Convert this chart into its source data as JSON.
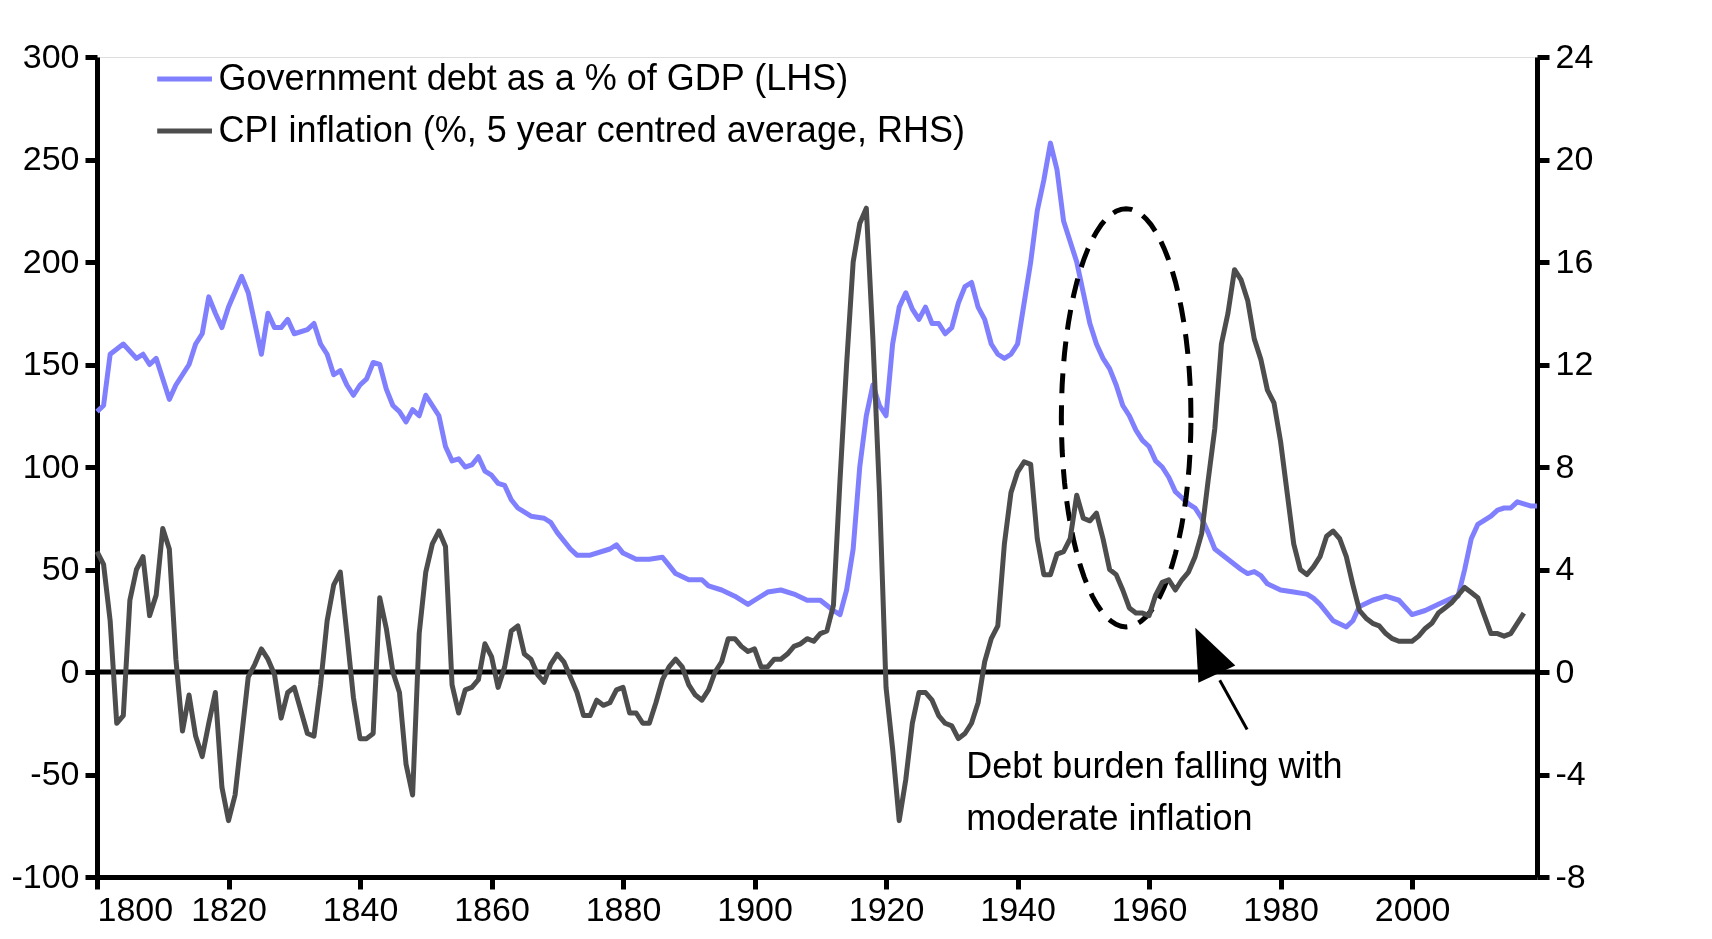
{
  "chart_data": {
    "type": "line",
    "xlim": [
      1800,
      2019
    ],
    "xticks": [
      1800,
      1820,
      1840,
      1860,
      1880,
      1900,
      1920,
      1940,
      1960,
      1980,
      2000
    ],
    "ylim": [
      -100,
      300
    ],
    "yticks": [
      -100,
      -50,
      0,
      50,
      100,
      150,
      200,
      250,
      300
    ],
    "y2lim": [
      -8,
      24
    ],
    "y2ticks": [
      -8,
      -4,
      0,
      4,
      8,
      12,
      16,
      20,
      24
    ],
    "grid": false,
    "legend": "top left",
    "marker": "none",
    "line_style": "solid",
    "ref_lines": [
      {
        "axis": "y",
        "value": 0,
        "label": null,
        "color": "#000000"
      }
    ],
    "annotations": [
      {
        "text": "Debt burden falling with moderate inflation",
        "x": 1969,
        "y": 0
      }
    ],
    "series": [
      {
        "name": "Government debt as a % of GDP (LHS)",
        "color": "#8080ff",
        "axis": "y",
        "x": [
          1800,
          1801,
          1802,
          1804,
          1806,
          1807,
          1808,
          1809,
          1811,
          1812,
          1814,
          1815,
          1816,
          1817,
          1818,
          1819,
          1820,
          1822,
          1823,
          1825,
          1826,
          1827,
          1828,
          1829,
          1830,
          1832,
          1833,
          1834,
          1835,
          1836,
          1837,
          1838,
          1839,
          1840,
          1841,
          1842,
          1843,
          1844,
          1845,
          1846,
          1847,
          1848,
          1849,
          1850,
          1851,
          1852,
          1853,
          1854,
          1855,
          1856,
          1857,
          1858,
          1859,
          1860,
          1861,
          1862,
          1863,
          1864,
          1866,
          1868,
          1869,
          1870,
          1872,
          1873,
          1875,
          1878,
          1879,
          1880,
          1882,
          1884,
          1886,
          1887,
          1888,
          1890,
          1892,
          1893,
          1895,
          1897,
          1899,
          1900,
          1902,
          1904,
          1906,
          1908,
          1910,
          1912,
          1913,
          1914,
          1915,
          1916,
          1917,
          1918,
          1919,
          1920,
          1921,
          1922,
          1923,
          1924,
          1925,
          1926,
          1927,
          1928,
          1929,
          1930,
          1931,
          1932,
          1933,
          1934,
          1935,
          1936,
          1937,
          1938,
          1939,
          1940,
          1941,
          1942,
          1943,
          1944,
          1945,
          1946,
          1947,
          1948,
          1949,
          1950,
          1951,
          1952,
          1953,
          1954,
          1955,
          1956,
          1957,
          1958,
          1959,
          1960,
          1961,
          1962,
          1963,
          1964,
          1965,
          1966,
          1967,
          1968,
          1969,
          1970,
          1972,
          1974,
          1975,
          1976,
          1977,
          1978,
          1980,
          1982,
          1984,
          1985,
          1986,
          1988,
          1990,
          1991,
          1992,
          1994,
          1996,
          1998,
          2000,
          2002,
          2004,
          2006,
          2007,
          2008,
          2009,
          2010,
          2012,
          2013,
          2014,
          2015,
          2016,
          2017,
          2018,
          2019
        ],
        "values": [
          127,
          130,
          155,
          160,
          153,
          155,
          150,
          153,
          133,
          140,
          150,
          160,
          165,
          183,
          175,
          168,
          178,
          193,
          185,
          155,
          175,
          168,
          168,
          172,
          165,
          167,
          170,
          160,
          155,
          145,
          147,
          140,
          135,
          140,
          143,
          151,
          150,
          138,
          130,
          127,
          122,
          128,
          125,
          135,
          130,
          125,
          110,
          103,
          104,
          100,
          101,
          105,
          98,
          96,
          92,
          91,
          84,
          80,
          76,
          75,
          73,
          68,
          60,
          57,
          57,
          60,
          62,
          58,
          55,
          55,
          56,
          52,
          48,
          45,
          45,
          42,
          40,
          37,
          33,
          35,
          39,
          40,
          38,
          35,
          35,
          30,
          28,
          40,
          60,
          100,
          125,
          140,
          130,
          125,
          160,
          178,
          185,
          177,
          172,
          178,
          170,
          170,
          165,
          168,
          180,
          188,
          190,
          178,
          172,
          160,
          155,
          153,
          155,
          160,
          180,
          200,
          225,
          240,
          258,
          245,
          220,
          210,
          200,
          185,
          170,
          160,
          153,
          148,
          140,
          130,
          125,
          118,
          113,
          110,
          103,
          100,
          95,
          88,
          85,
          82,
          80,
          75,
          68,
          60,
          55,
          50,
          48,
          49,
          47,
          43,
          40,
          39,
          38,
          36,
          33,
          25,
          22,
          25,
          32,
          35,
          37,
          35,
          28,
          30,
          33,
          36,
          37,
          50,
          65,
          72,
          76,
          79,
          80,
          80,
          83,
          82,
          81,
          81
        ]
      },
      {
        "name": "CPI inflation (%, 5 year centred average, RHS)",
        "color": "#4d4d4d",
        "axis": "y2",
        "x": [
          1800,
          1801,
          1802,
          1803,
          1804,
          1805,
          1806,
          1807,
          1808,
          1809,
          1810,
          1811,
          1812,
          1813,
          1814,
          1815,
          1816,
          1817,
          1818,
          1819,
          1820,
          1821,
          1822,
          1823,
          1824,
          1825,
          1826,
          1827,
          1828,
          1829,
          1830,
          1832,
          1833,
          1834,
          1835,
          1836,
          1837,
          1838,
          1839,
          1840,
          1841,
          1842,
          1843,
          1844,
          1845,
          1846,
          1847,
          1848,
          1849,
          1850,
          1851,
          1852,
          1853,
          1854,
          1855,
          1856,
          1857,
          1858,
          1859,
          1860,
          1861,
          1862,
          1863,
          1864,
          1865,
          1866,
          1867,
          1868,
          1869,
          1870,
          1871,
          1872,
          1873,
          1874,
          1875,
          1876,
          1877,
          1878,
          1879,
          1880,
          1881,
          1882,
          1883,
          1884,
          1885,
          1886,
          1887,
          1888,
          1889,
          1890,
          1891,
          1892,
          1893,
          1894,
          1895,
          1896,
          1897,
          1898,
          1899,
          1900,
          1901,
          1902,
          1903,
          1904,
          1905,
          1906,
          1907,
          1908,
          1909,
          1910,
          1911,
          1912,
          1913,
          1914,
          1915,
          1916,
          1917,
          1918,
          1919,
          1920,
          1921,
          1922,
          1923,
          1924,
          1925,
          1926,
          1927,
          1928,
          1929,
          1930,
          1931,
          1932,
          1933,
          1934,
          1935,
          1936,
          1937,
          1938,
          1939,
          1940,
          1941,
          1942,
          1943,
          1944,
          1945,
          1946,
          1947,
          1948,
          1949,
          1950,
          1951,
          1952,
          1953,
          1954,
          1955,
          1956,
          1957,
          1958,
          1959,
          1960,
          1961,
          1962,
          1963,
          1964,
          1965,
          1966,
          1967,
          1968,
          1969,
          1970,
          1971,
          1972,
          1973,
          1974,
          1975,
          1976,
          1977,
          1978,
          1979,
          1980,
          1981,
          1982,
          1983,
          1984,
          1985,
          1986,
          1987,
          1988,
          1989,
          1990,
          1991,
          1992,
          1993,
          1994,
          1995,
          1996,
          1997,
          1998,
          1999,
          2000,
          2001,
          2002,
          2003,
          2004,
          2005,
          2006,
          2007,
          2008,
          2009,
          2010,
          2011,
          2012,
          2013,
          2014,
          2015,
          2016,
          2017
        ],
        "values": [
          4.7,
          4.2,
          2,
          -2,
          -1.7,
          2.8,
          4,
          4.5,
          2.2,
          3,
          5.6,
          4.8,
          0.5,
          -2.3,
          -0.9,
          -2.5,
          -3.3,
          -2,
          -0.8,
          -4.5,
          -5.8,
          -4.8,
          -2.5,
          -0.2,
          0.3,
          0.9,
          0.5,
          -0.1,
          -1.8,
          -0.8,
          -0.6,
          -2.4,
          -2.5,
          -0.5,
          2,
          3.4,
          3.9,
          1.5,
          -1,
          -2.6,
          -2.6,
          -2.4,
          2.9,
          1.7,
          0,
          -0.8,
          -3.6,
          -4.8,
          1.5,
          3.9,
          5,
          5.5,
          4.9,
          -0.5,
          -1.6,
          -0.7,
          -0.6,
          -0.3,
          1.1,
          0.6,
          -0.6,
          0.2,
          1.6,
          1.8,
          0.7,
          0.5,
          -0.1,
          -0.4,
          0.3,
          0.7,
          0.4,
          -0.2,
          -0.8,
          -1.7,
          -1.7,
          -1.1,
          -1.3,
          -1.2,
          -0.7,
          -0.6,
          -1.6,
          -1.6,
          -2,
          -2,
          -1.2,
          -0.3,
          0.2,
          0.5,
          0.2,
          -0.5,
          -0.9,
          -1.1,
          -0.7,
          0,
          0.4,
          1.3,
          1.3,
          1,
          0.8,
          0.9,
          0.2,
          0.2,
          0.5,
          0.5,
          0.7,
          1,
          1.1,
          1.3,
          1.2,
          1.5,
          1.6,
          2.6,
          7.5,
          12,
          16,
          17.5,
          18.1,
          13,
          7,
          -0.6,
          -3,
          -5.8,
          -4.2,
          -2,
          -0.8,
          -0.8,
          -1.1,
          -1.7,
          -2,
          -2.1,
          -2.6,
          -2.4,
          -2,
          -1.2,
          0.4,
          1.3,
          1.8,
          5,
          7,
          7.8,
          8.2,
          8.1,
          5.2,
          3.8,
          3.8,
          4.6,
          4.7,
          5.2,
          6.9,
          6,
          5.9,
          6.2,
          5.2,
          4,
          3.8,
          3.2,
          2.5,
          2.3,
          2.3,
          2.2,
          3,
          3.5,
          3.6,
          3.2,
          3.6,
          3.9,
          4.5,
          5.4,
          7.5,
          9.5,
          12.8,
          14,
          15.7,
          15.3,
          14.5,
          13,
          12.2,
          11,
          10.5,
          9,
          7,
          5,
          4,
          3.8,
          4.1,
          4.5,
          5.3,
          5.5,
          5.2,
          4.5,
          3.4,
          2.4,
          2.1,
          1.9,
          1.8,
          1.5,
          1.3,
          1.2,
          1.2,
          1.2,
          1.4,
          1.7,
          1.9,
          2.3,
          2.5,
          2.7,
          3,
          3.3,
          3.1,
          2.9,
          2.2,
          1.5,
          1.5,
          1.4,
          1.5,
          1.9,
          2.3
        ]
      }
    ]
  }
}
